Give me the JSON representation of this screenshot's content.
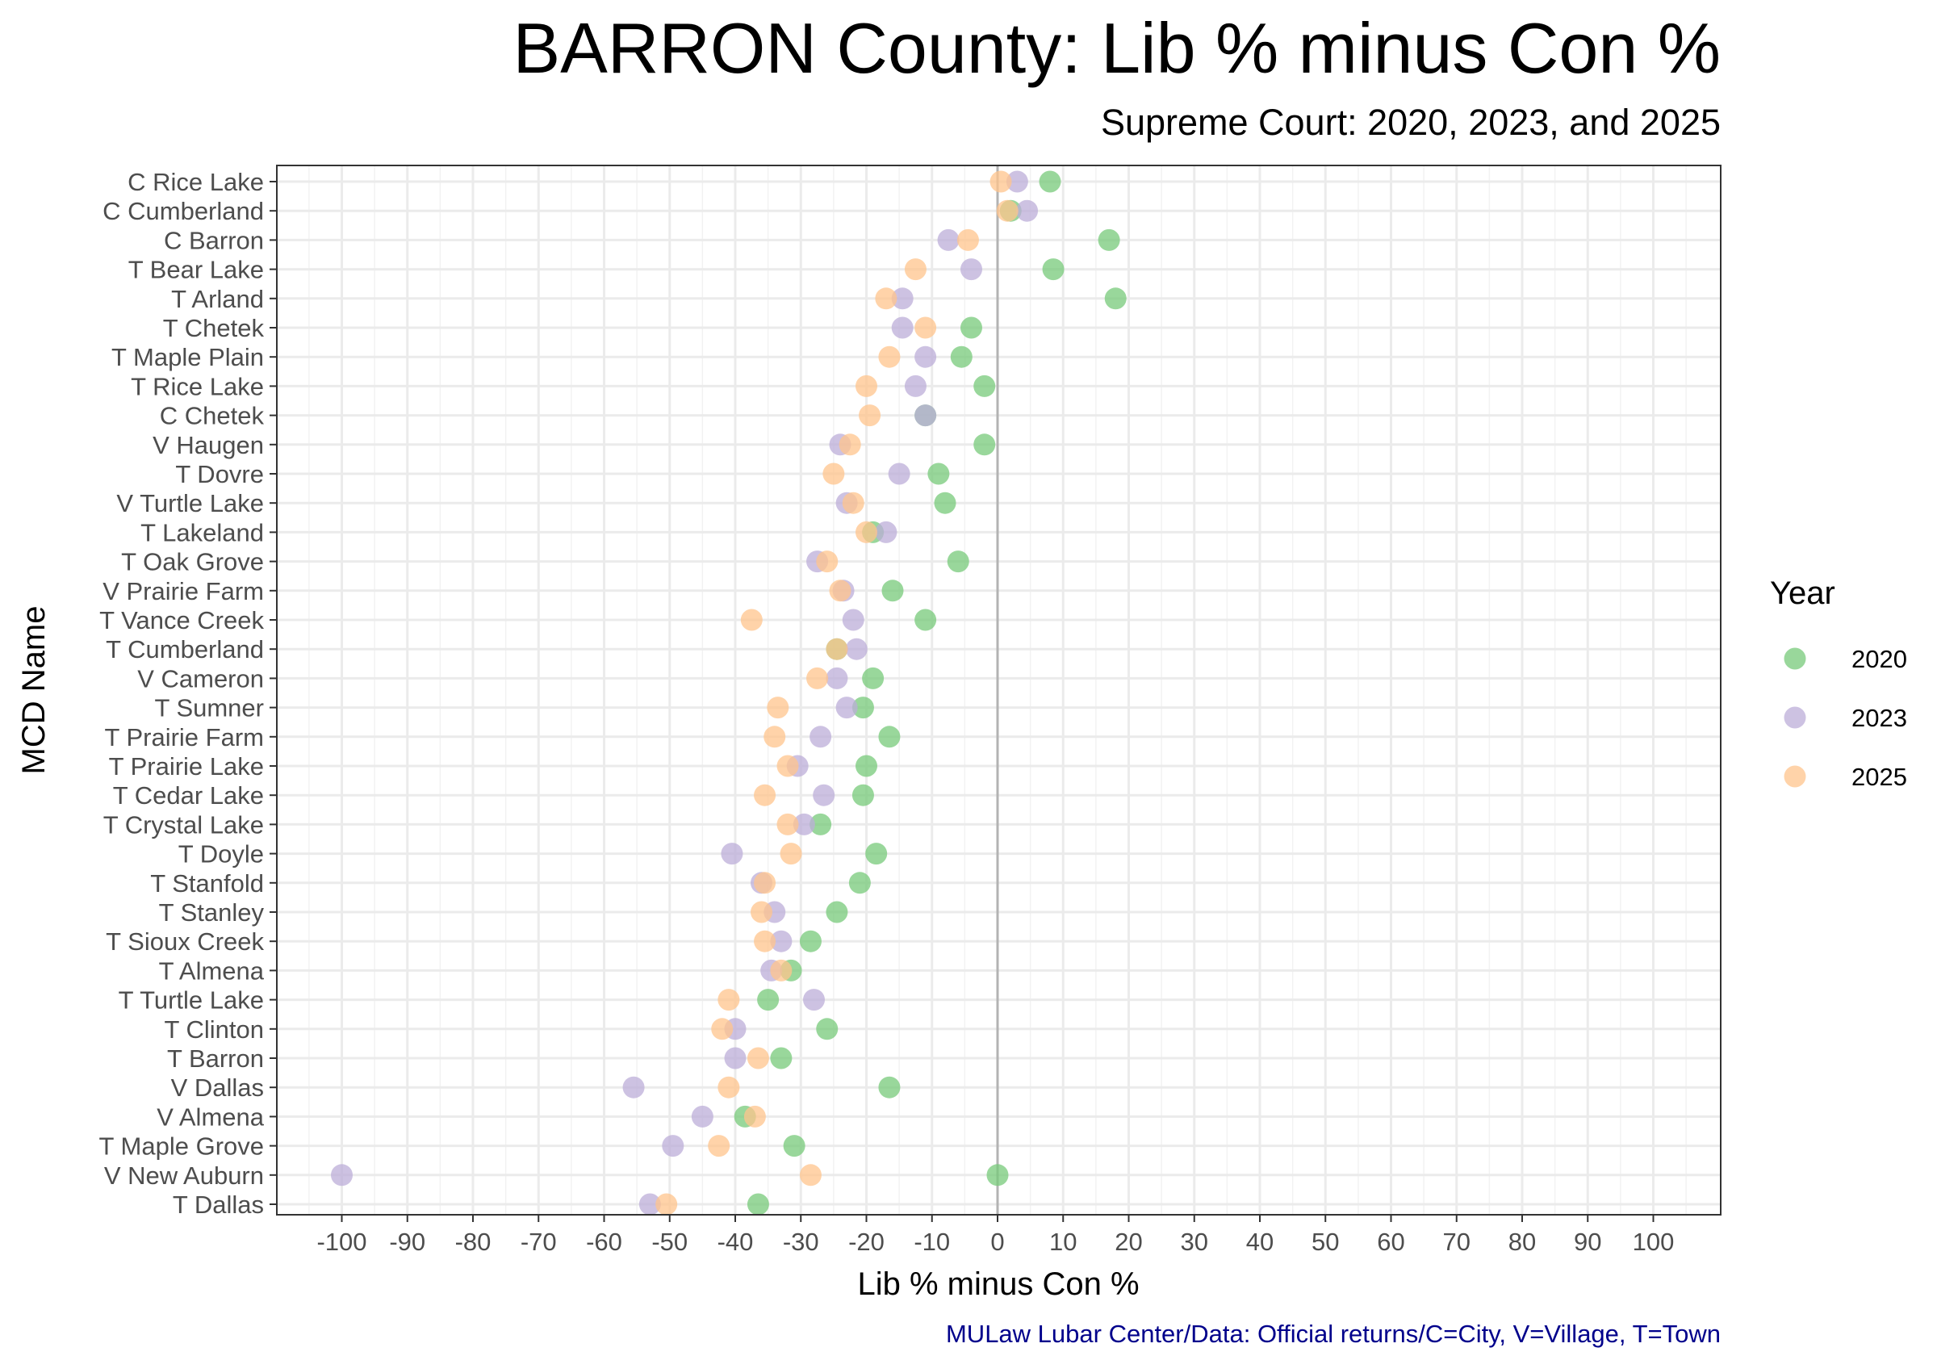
{
  "chart_data": {
    "type": "scatter",
    "title": "BARRON County: Lib % minus Con %",
    "subtitle": "Supreme Court: 2020, 2023, and 2025",
    "xlabel": "Lib % minus Con %",
    "ylabel": "MCD Name",
    "caption": "MULaw Lubar Center/Data: Official returns/C=City, V=Village, T=Town",
    "xlim": [
      -100,
      100
    ],
    "xticks": [
      "-100",
      "-90",
      "-80",
      "-70",
      "-60",
      "-50",
      "-40",
      "-30",
      "-20",
      "-10",
      "0",
      "10",
      "20",
      "30",
      "40",
      "50",
      "60",
      "70",
      "80",
      "90",
      "100"
    ],
    "grid": true,
    "reference_line_x": 0,
    "legend": {
      "title": "Year",
      "position": "right"
    },
    "categories": [
      "C Rice Lake",
      "C Cumberland",
      "C Barron",
      "T Bear Lake",
      "T Arland",
      "T Chetek",
      "T Maple Plain",
      "T Rice Lake",
      "C Chetek",
      "V Haugen",
      "T Dovre",
      "V Turtle Lake",
      "T Lakeland",
      "T Oak Grove",
      "V Prairie Farm",
      "T Vance Creek",
      "T Cumberland",
      "V Cameron",
      "T Sumner",
      "T Prairie Farm",
      "T Prairie Lake",
      "T Cedar Lake",
      "T Crystal Lake",
      "T Doyle",
      "T Stanfold",
      "T Stanley",
      "T Sioux Creek",
      "T Almena",
      "T Turtle Lake",
      "T Clinton",
      "T Barron",
      "V Dallas",
      "V Almena",
      "T Maple Grove",
      "V New Auburn",
      "T Dallas"
    ],
    "series": [
      {
        "name": "2020",
        "color": "#77c97a",
        "values": [
          8,
          2,
          17,
          8.5,
          18,
          -4,
          -5.5,
          -2,
          -11,
          -2,
          -9,
          -8,
          -19,
          -6,
          -16,
          -11,
          -24.5,
          -19,
          -20.5,
          -16.5,
          -20,
          -20.5,
          -27,
          -18.5,
          -21,
          -24.5,
          -28.5,
          -31.5,
          -35,
          -26,
          -33,
          -16.5,
          -38.5,
          -31,
          0,
          -36.5
        ]
      },
      {
        "name": "2023",
        "color": "#bcaed8",
        "values": [
          3,
          4.5,
          -7.5,
          -4,
          -14.5,
          -14.5,
          -11,
          -12.5,
          -11,
          -24,
          -15,
          -23,
          -17,
          -27.5,
          -23.5,
          -22,
          -21.5,
          -24.5,
          -23,
          -27,
          -30.5,
          -26.5,
          -29.5,
          -40.5,
          -36,
          -34,
          -33,
          -34.5,
          -28,
          -40,
          -40,
          -55.5,
          -45,
          -49.5,
          -100,
          -53
        ]
      },
      {
        "name": "2025",
        "color": "#ffc48c",
        "values": [
          0.5,
          1.5,
          -4.5,
          -12.5,
          -17,
          -11,
          -16.5,
          -20,
          -19.5,
          -22.5,
          -25,
          -22,
          -20,
          -26,
          -24,
          -37.5,
          -24.5,
          -27.5,
          -33.5,
          -34,
          -32,
          -35.5,
          -32,
          -31.5,
          -35.5,
          -36,
          -35.5,
          -33,
          -41,
          -42,
          -36.5,
          -41,
          -37,
          -42.5,
          -28.5,
          -50.5
        ]
      }
    ]
  }
}
